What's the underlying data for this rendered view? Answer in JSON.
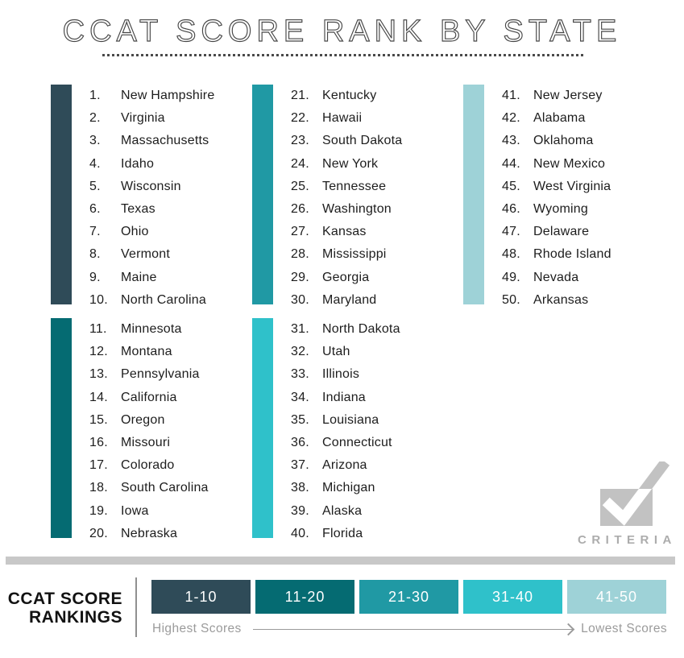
{
  "title": "CCAT SCORE RANK BY STATE",
  "logo": {
    "brand": "CRITERIA"
  },
  "legend": {
    "heading_lines": [
      "CCAT SCORE",
      "RANKINGS"
    ],
    "highest_label": "Highest Scores",
    "lowest_label": "Lowest Scores"
  },
  "chart_data": {
    "type": "table",
    "title": "CCAT SCORE RANK BY STATE",
    "groups": [
      {
        "range": "1-10",
        "color": "#2F4B58",
        "items": [
          {
            "rank": 1,
            "state": "New Hampshire"
          },
          {
            "rank": 2,
            "state": "Virginia"
          },
          {
            "rank": 3,
            "state": "Massachusetts"
          },
          {
            "rank": 4,
            "state": "Idaho"
          },
          {
            "rank": 5,
            "state": "Wisconsin"
          },
          {
            "rank": 6,
            "state": "Texas"
          },
          {
            "rank": 7,
            "state": "Ohio"
          },
          {
            "rank": 8,
            "state": "Vermont"
          },
          {
            "rank": 9,
            "state": "Maine"
          },
          {
            "rank": 10,
            "state": "North Carolina"
          }
        ]
      },
      {
        "range": "11-20",
        "color": "#056B72",
        "items": [
          {
            "rank": 11,
            "state": "Minnesota"
          },
          {
            "rank": 12,
            "state": "Montana"
          },
          {
            "rank": 13,
            "state": "Pennsylvania"
          },
          {
            "rank": 14,
            "state": "California"
          },
          {
            "rank": 15,
            "state": "Oregon"
          },
          {
            "rank": 16,
            "state": "Missouri"
          },
          {
            "rank": 17,
            "state": "Colorado"
          },
          {
            "rank": 18,
            "state": "South Carolina"
          },
          {
            "rank": 19,
            "state": "Iowa"
          },
          {
            "rank": 20,
            "state": "Nebraska"
          }
        ]
      },
      {
        "range": "21-30",
        "color": "#2099A4",
        "items": [
          {
            "rank": 21,
            "state": "Kentucky"
          },
          {
            "rank": 22,
            "state": "Hawaii"
          },
          {
            "rank": 23,
            "state": "South Dakota"
          },
          {
            "rank": 24,
            "state": "New York"
          },
          {
            "rank": 25,
            "state": "Tennessee"
          },
          {
            "rank": 26,
            "state": "Washington"
          },
          {
            "rank": 27,
            "state": "Kansas"
          },
          {
            "rank": 28,
            "state": "Mississippi"
          },
          {
            "rank": 29,
            "state": "Georgia"
          },
          {
            "rank": 30,
            "state": "Maryland"
          }
        ]
      },
      {
        "range": "31-40",
        "color": "#2FC1CA",
        "items": [
          {
            "rank": 31,
            "state": "North Dakota"
          },
          {
            "rank": 32,
            "state": "Utah"
          },
          {
            "rank": 33,
            "state": "Illinois"
          },
          {
            "rank": 34,
            "state": "Indiana"
          },
          {
            "rank": 35,
            "state": "Louisiana"
          },
          {
            "rank": 36,
            "state": "Connecticut"
          },
          {
            "rank": 37,
            "state": "Arizona"
          },
          {
            "rank": 38,
            "state": "Michigan"
          },
          {
            "rank": 39,
            "state": "Alaska"
          },
          {
            "rank": 40,
            "state": "Florida"
          }
        ]
      },
      {
        "range": "41-50",
        "color": "#9ED2D7",
        "items": [
          {
            "rank": 41,
            "state": "New Jersey"
          },
          {
            "rank": 42,
            "state": "Alabama"
          },
          {
            "rank": 43,
            "state": "Oklahoma"
          },
          {
            "rank": 44,
            "state": "New Mexico"
          },
          {
            "rank": 45,
            "state": "West Virginia"
          },
          {
            "rank": 46,
            "state": "Wyoming"
          },
          {
            "rank": 47,
            "state": "Delaware"
          },
          {
            "rank": 48,
            "state": "Rhode Island"
          },
          {
            "rank": 49,
            "state": "Nevada"
          },
          {
            "rank": 50,
            "state": "Arkansas"
          }
        ]
      }
    ],
    "scale": {
      "left": "Highest Scores",
      "right": "Lowest Scores"
    }
  }
}
